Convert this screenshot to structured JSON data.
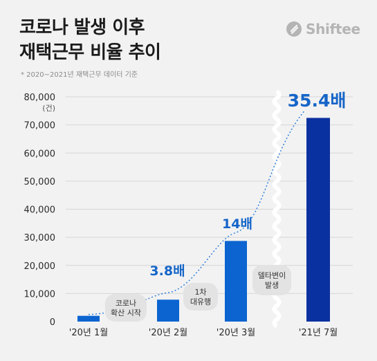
{
  "title_line1": "코로나 발생 이후",
  "title_line2": "재택근무 비율 추이",
  "note": "* 2020~2021년 재택근무 데이터 기준",
  "brand": {
    "name": "Shiftee",
    "icon": "shiftee-logo-icon",
    "color": "#b4b4b4"
  },
  "chart_data": {
    "type": "bar",
    "categories": [
      "'20년 1월",
      "'20년 2월",
      "'20년 3월",
      "'21년 7월"
    ],
    "values": [
      2050,
      7800,
      28700,
      72500
    ],
    "ylim": [
      0,
      80000
    ],
    "yticks": [
      0,
      10000,
      20000,
      30000,
      40000,
      50000,
      60000,
      70000,
      80000
    ],
    "ytick_labels": [
      "0",
      "10,000",
      "20,000",
      "30,000",
      "40,000",
      "50,000",
      "60,000",
      "70,000",
      "80,000"
    ],
    "yunit": "(건)",
    "data_labels": [
      "",
      "3.8배",
      "14배",
      "35.4배"
    ],
    "annotations": [
      {
        "lines": [
          "코로나",
          "확산 시작"
        ]
      },
      {
        "lines": [
          "1차",
          "대유행"
        ]
      },
      {
        "lines": [
          "델타변이",
          "발생"
        ]
      }
    ],
    "axis_break": "between '20년 3월 and '21년 7월",
    "grid": true,
    "colors": {
      "bar": "#0b64d0",
      "bar_last": "#0a31a0",
      "label": "#1565c8",
      "trend": "#2f80dc",
      "annotation_bg": "#e3e3e3"
    }
  }
}
